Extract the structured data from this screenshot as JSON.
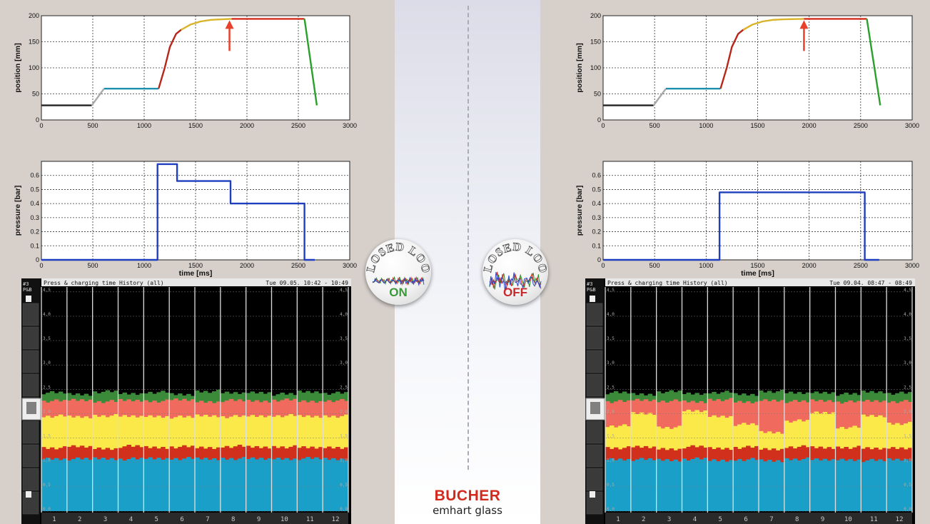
{
  "branding": {
    "brand": "BUCHER",
    "subbrand": "emhart glass"
  },
  "colors": {
    "plot_bg": "#ffffff",
    "pressure_line": "#1f3fbf",
    "arrow": "#e8402a",
    "hist_blue": "#1aa0c8",
    "hist_red": "#d0301c",
    "hist_yellow": "#fbe94a",
    "hist_salmon": "#f16a5e",
    "hist_green": "#3a8a3a",
    "on_text": "#3a9a3a",
    "off_text": "#c8282a"
  },
  "badges": {
    "on": {
      "title": "CLOSED LOOP",
      "state": "ON"
    },
    "off": {
      "title": "CLOSED LOOP",
      "state": "OFF"
    }
  },
  "chart_data": [
    {
      "id": "left-position",
      "type": "line",
      "ylabel": "position [mm]",
      "xlim": [
        0,
        3000
      ],
      "ylim": [
        0,
        200
      ],
      "xticks": [
        0,
        500,
        1000,
        1500,
        2000,
        2500,
        3000
      ],
      "yticks": [
        0,
        50,
        100,
        150,
        200
      ],
      "grid": true,
      "series": [
        {
          "color": "#222222",
          "x": [
            0,
            490
          ],
          "y": [
            28,
            28
          ]
        },
        {
          "color": "#aaaaaa",
          "x": [
            490,
            610
          ],
          "y": [
            28,
            60
          ]
        },
        {
          "color": "#1b8fb0",
          "x": [
            610,
            1140
          ],
          "y": [
            60,
            60
          ]
        },
        {
          "color": "#b8261a",
          "x": [
            1140,
            1200,
            1250,
            1310,
            1360
          ],
          "y": [
            60,
            100,
            140,
            165,
            173
          ]
        },
        {
          "color": "#d9b32a",
          "x": [
            1360,
            1450,
            1550,
            1650,
            1750,
            1850
          ],
          "y": [
            173,
            183,
            189,
            192,
            193,
            194
          ]
        },
        {
          "color": "#d42a1a",
          "x": [
            1850,
            2560
          ],
          "y": [
            194,
            194
          ]
        },
        {
          "color": "#2aa02a",
          "x": [
            2560,
            2680
          ],
          "y": [
            194,
            28
          ]
        }
      ],
      "arrow_x": 1830
    },
    {
      "id": "left-pressure",
      "type": "line",
      "ylabel": "pressure [bar]",
      "xlabel": "time [ms]",
      "xlim": [
        0,
        3000
      ],
      "ylim": [
        0,
        0.7
      ],
      "xticks": [
        0,
        500,
        1000,
        1500,
        2000,
        2500,
        3000
      ],
      "yticks": [
        0,
        0.1,
        0.2,
        0.3,
        0.4,
        0.5,
        0.6
      ],
      "grid": true,
      "series": [
        {
          "color": "#1f3fbf",
          "x": [
            0,
            1130,
            1130,
            1320,
            1320,
            1840,
            1840,
            2560,
            2560,
            2660
          ],
          "y": [
            0,
            0,
            0.68,
            0.68,
            0.56,
            0.56,
            0.4,
            0.4,
            0,
            0
          ]
        }
      ]
    },
    {
      "id": "right-position",
      "type": "line",
      "ylabel": "position [mm]",
      "xlim": [
        0,
        3000
      ],
      "ylim": [
        0,
        200
      ],
      "xticks": [
        0,
        500,
        1000,
        1500,
        2000,
        2500,
        3000
      ],
      "yticks": [
        0,
        50,
        100,
        150,
        200
      ],
      "grid": true,
      "series": [
        {
          "color": "#222222",
          "x": [
            0,
            490
          ],
          "y": [
            28,
            28
          ]
        },
        {
          "color": "#aaaaaa",
          "x": [
            490,
            610
          ],
          "y": [
            28,
            60
          ]
        },
        {
          "color": "#1b8fb0",
          "x": [
            610,
            1140
          ],
          "y": [
            60,
            60
          ]
        },
        {
          "color": "#b8261a",
          "x": [
            1140,
            1200,
            1250,
            1310,
            1360
          ],
          "y": [
            60,
            100,
            140,
            165,
            173
          ]
        },
        {
          "color": "#d9b32a",
          "x": [
            1360,
            1450,
            1550,
            1650,
            1750,
            1950
          ],
          "y": [
            173,
            183,
            189,
            192,
            193,
            194
          ]
        },
        {
          "color": "#d42a1a",
          "x": [
            1950,
            2560
          ],
          "y": [
            194,
            194
          ]
        },
        {
          "color": "#2aa02a",
          "x": [
            2560,
            2690
          ],
          "y": [
            194,
            28
          ]
        }
      ],
      "arrow_x": 1950
    },
    {
      "id": "right-pressure",
      "type": "line",
      "ylabel": "pressure [bar]",
      "xlabel": "time [ms]",
      "xlim": [
        0,
        3000
      ],
      "ylim": [
        0,
        0.7
      ],
      "xticks": [
        0,
        500,
        1000,
        1500,
        2000,
        2500,
        3000
      ],
      "yticks": [
        0,
        0.1,
        0.2,
        0.3,
        0.4,
        0.5,
        0.6
      ],
      "grid": true,
      "series": [
        {
          "color": "#1f3fbf",
          "x": [
            0,
            1130,
            1130,
            2540,
            2540,
            2680
          ],
          "y": [
            0,
            0,
            0.48,
            0.48,
            0,
            0
          ]
        }
      ]
    },
    {
      "id": "left-history",
      "type": "area",
      "title": "Press & charging time History (all)",
      "timestamp": "Tue 09.05. 10:42 - 10:49",
      "side_label": [
        "#3",
        "P&B"
      ],
      "ylim": [
        0,
        4.6
      ],
      "yticks": [
        "4,5",
        "4,0",
        "3,5",
        "3,0",
        "2,5",
        "2,0",
        "1,5",
        "1,0",
        "0,5",
        "0,0"
      ],
      "categories": [
        "1",
        "2",
        "3",
        "4",
        "5",
        "6",
        "7",
        "8",
        "9",
        "10",
        "11",
        "12"
      ],
      "layers": {
        "blue_top": [
          1.08,
          1.07,
          1.08,
          1.07,
          1.08,
          1.08,
          1.07,
          1.08,
          1.07,
          1.08,
          1.08,
          1.07
        ],
        "red_top": [
          1.3,
          1.32,
          1.29,
          1.33,
          1.31,
          1.32,
          1.3,
          1.33,
          1.31,
          1.32,
          1.3,
          1.31
        ],
        "yellow_top": [
          1.95,
          1.93,
          1.96,
          1.94,
          1.95,
          1.93,
          1.96,
          1.94,
          1.95,
          1.96,
          1.94,
          1.95
        ],
        "salmon_top": [
          2.26,
          2.28,
          2.25,
          2.27,
          2.26,
          2.28,
          2.25,
          2.27,
          2.26,
          2.28,
          2.25,
          2.27
        ],
        "green_top": [
          2.43,
          2.4,
          2.45,
          2.41,
          2.44,
          2.39,
          2.46,
          2.42,
          2.44,
          2.4,
          2.45,
          2.42
        ]
      }
    },
    {
      "id": "right-history",
      "type": "area",
      "title": "Press & charging time History (all)",
      "timestamp": "Tue 09.04. 08:47 - 08:49",
      "side_label": [
        "#3",
        "P&B"
      ],
      "ylim": [
        0,
        4.6
      ],
      "yticks": [
        "4,5",
        "4,0",
        "3,5",
        "3,0",
        "2,5",
        "2,0",
        "1,5",
        "1,0",
        "0,5",
        "0,0"
      ],
      "categories": [
        "1",
        "2",
        "3",
        "4",
        "5",
        "6",
        "7",
        "8",
        "9",
        "10",
        "11",
        "12"
      ],
      "layers": {
        "blue_top": [
          1.07,
          1.06,
          1.05,
          1.07,
          1.04,
          1.06,
          1.03,
          1.07,
          1.05,
          1.06,
          1.04,
          1.06
        ],
        "red_top": [
          1.3,
          1.31,
          1.28,
          1.32,
          1.29,
          1.31,
          1.27,
          1.32,
          1.3,
          1.31,
          1.28,
          1.3
        ],
        "yellow_top": [
          1.75,
          2.0,
          1.72,
          2.05,
          1.95,
          1.78,
          1.62,
          1.85,
          2.02,
          1.72,
          1.95,
          1.8
        ],
        "salmon_top": [
          2.25,
          2.28,
          2.26,
          2.24,
          2.29,
          2.23,
          2.28,
          2.25,
          2.27,
          2.24,
          2.26,
          2.25
        ],
        "green_top": [
          2.43,
          2.4,
          2.45,
          2.41,
          2.44,
          2.39,
          2.46,
          2.42,
          2.44,
          2.4,
          2.45,
          2.42
        ]
      }
    }
  ]
}
